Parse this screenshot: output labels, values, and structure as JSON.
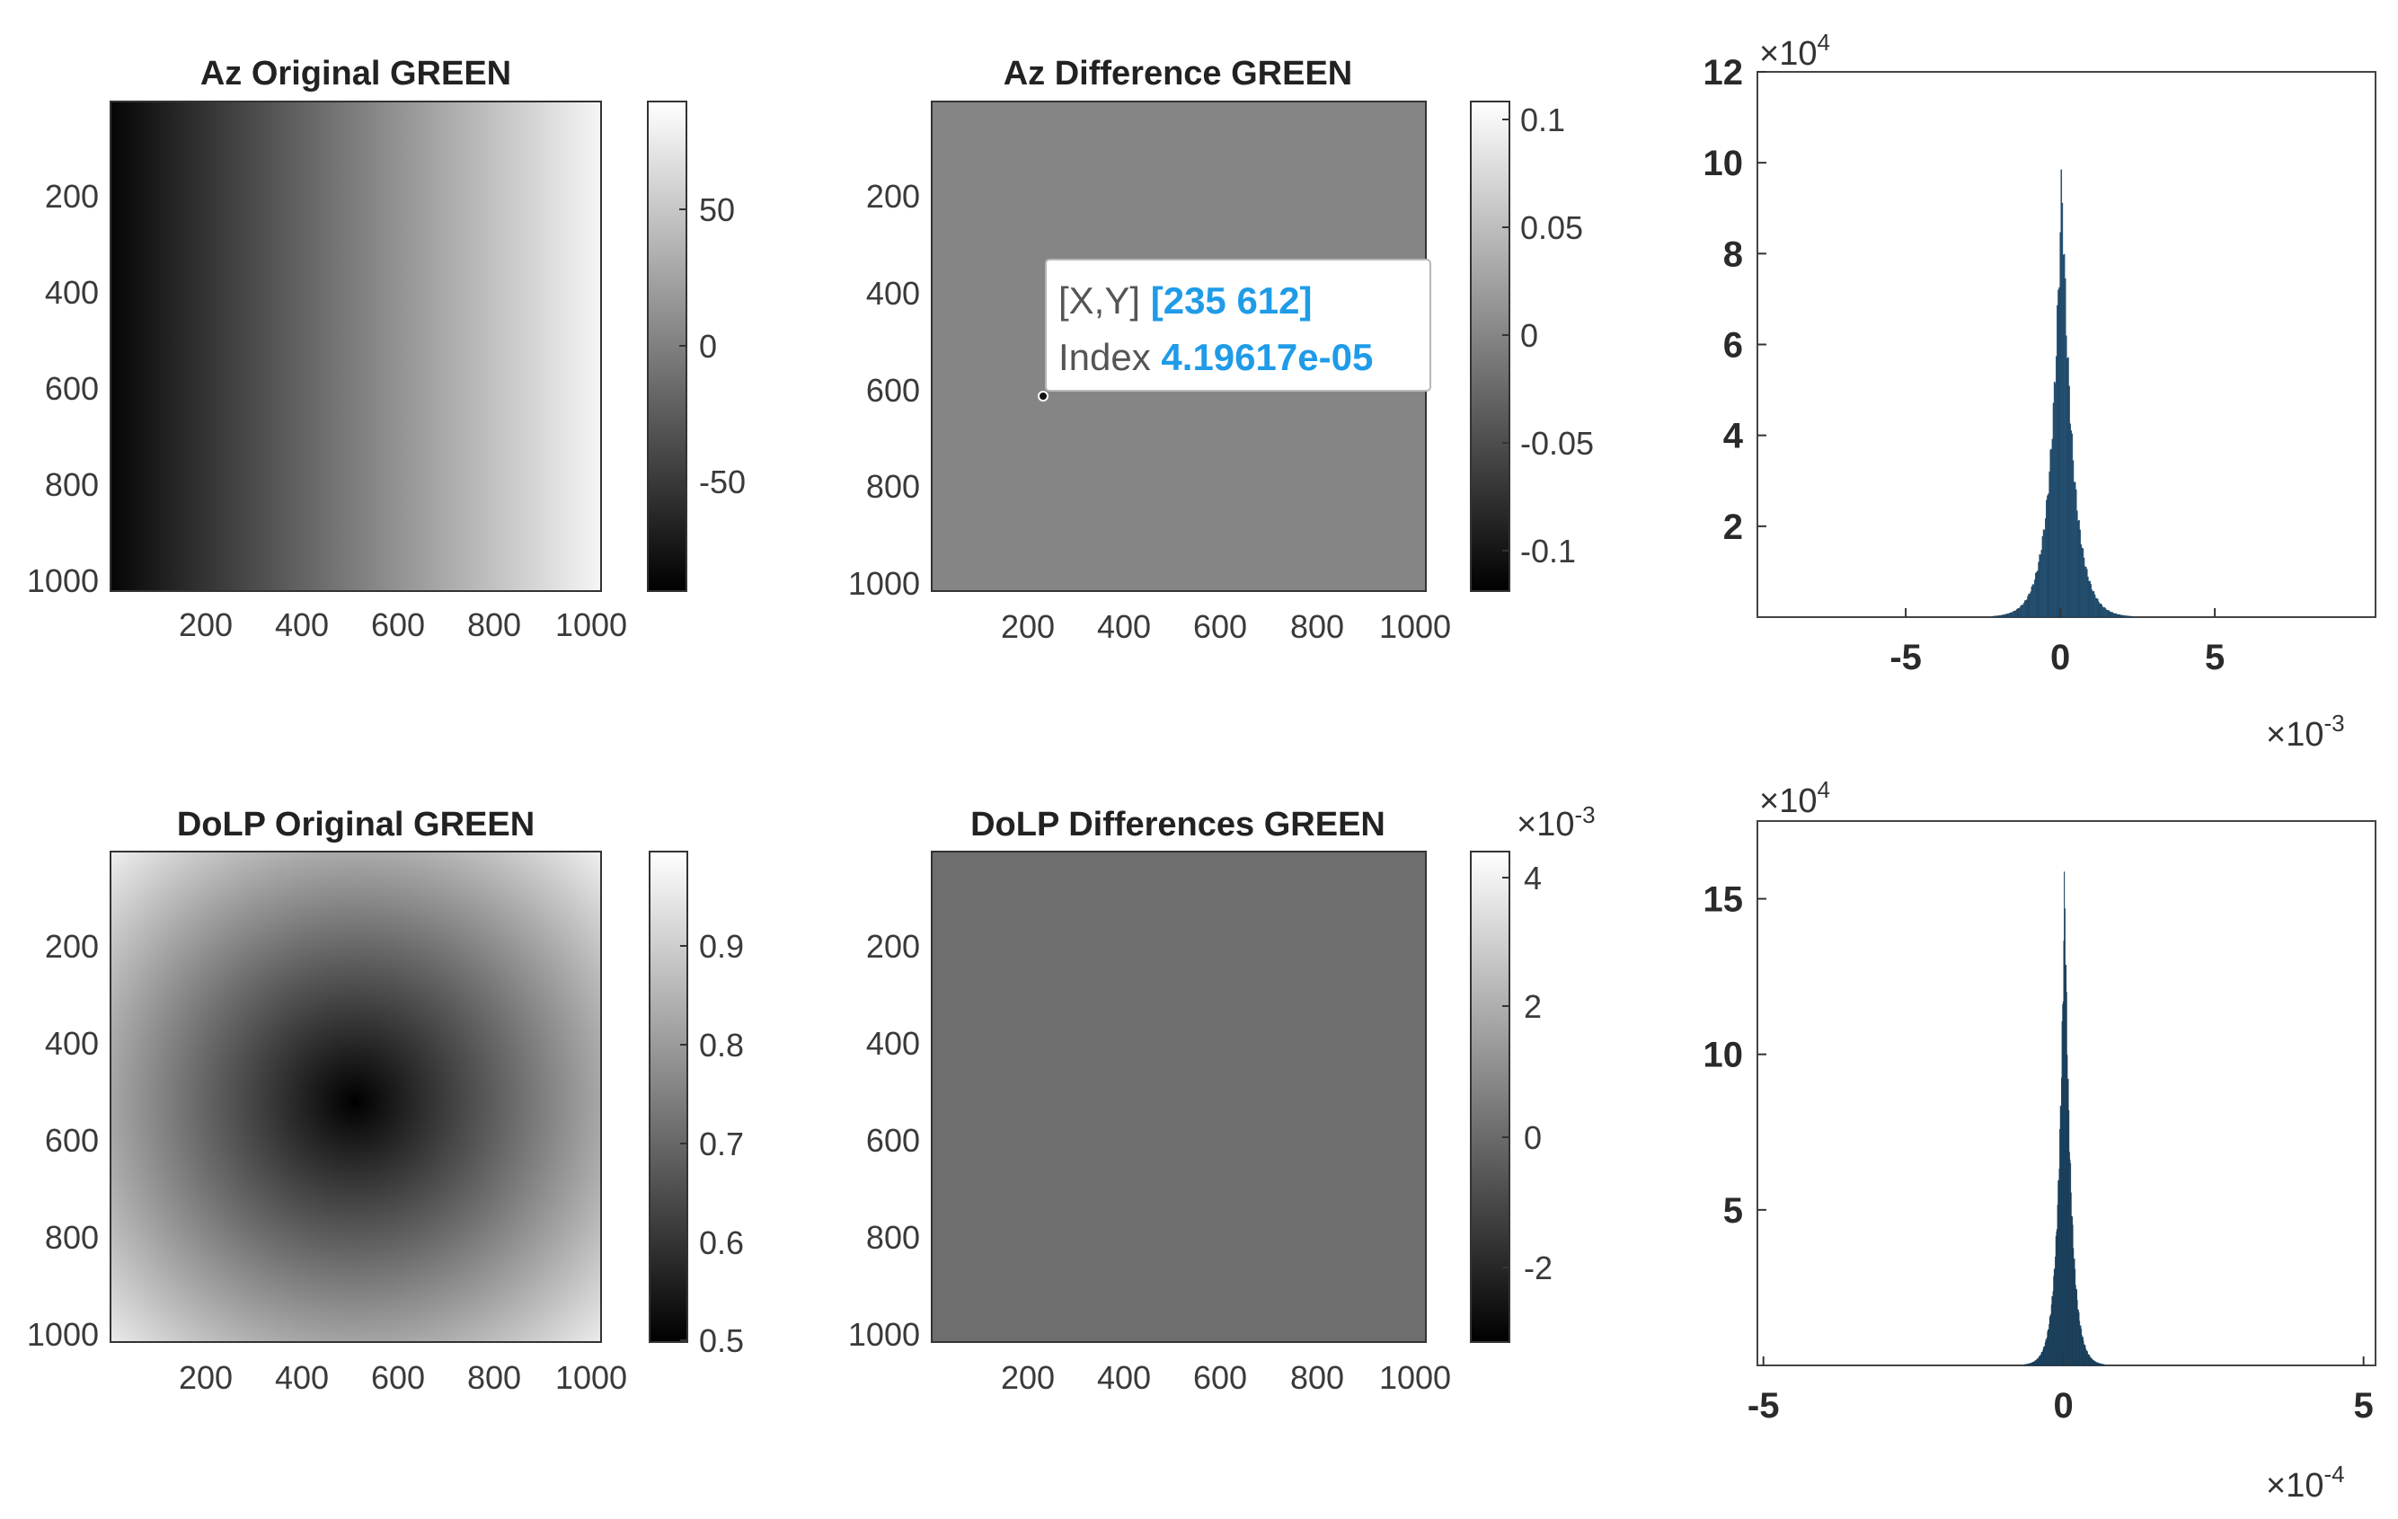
{
  "colors": {
    "histogram_bar": "#2e5f86",
    "histogram_edge": "#13324a",
    "datatip_value": "#1f9be8",
    "axes": "#333333"
  },
  "chart_data": [
    {
      "type": "heatmap",
      "title": "Az Original  GREEN",
      "colormap": "gray",
      "pattern": "horizontal-ramp",
      "x_ticks": [
        "200",
        "400",
        "600",
        "800",
        "1000"
      ],
      "y_ticks": [
        "200",
        "400",
        "600",
        "800",
        "1000"
      ],
      "xlim": [
        1,
        1024
      ],
      "ylim": [
        1,
        1024
      ],
      "clim": [
        -90,
        90
      ],
      "colorbar": {
        "ticks": [
          50,
          0,
          -50
        ],
        "labels": [
          "50",
          "0",
          "-50"
        ],
        "multiplier": ""
      }
    },
    {
      "type": "heatmap",
      "title": "Az Difference GREEN",
      "colormap": "gray",
      "pattern": "uniform",
      "uniform_value": 0,
      "x_ticks": [
        "200",
        "400",
        "600",
        "800",
        "1000"
      ],
      "y_ticks": [
        "200",
        "400",
        "600",
        "800",
        "1000"
      ],
      "xlim": [
        1,
        1024
      ],
      "ylim": [
        1,
        1024
      ],
      "clim": [
        -0.12,
        0.12
      ],
      "colorbar": {
        "ticks": [
          0.1,
          0.05,
          0,
          -0.05,
          -0.1
        ],
        "labels": [
          "0.1",
          "0.05",
          "0",
          "-0.05",
          "-0.1"
        ],
        "multiplier": ""
      },
      "datatip": {
        "x": 235,
        "y": 612,
        "xy_label": "[X,Y]",
        "xy_value": "[235 612]",
        "index_label": "Index",
        "index_value": "4.19617e-05"
      }
    },
    {
      "type": "bar",
      "subtype": "histogram",
      "x_ticks": [
        -5,
        0,
        5
      ],
      "x_tick_labels": [
        "-5",
        "0",
        "5"
      ],
      "y_ticks": [
        2,
        4,
        6,
        8,
        10,
        12
      ],
      "y_tick_labels": [
        "2",
        "4",
        "6",
        "8",
        "10",
        "12"
      ],
      "xlim": [
        -9.8,
        10.2
      ],
      "ylim": [
        0,
        12
      ],
      "x_multiplier": "×10",
      "x_multiplier_exp": "-3",
      "y_multiplier": "×10",
      "y_multiplier_exp": "4",
      "peak": 10.3,
      "center": 0.05,
      "spread": 0.85
    },
    {
      "type": "heatmap",
      "title": "DoLP Original GREEN",
      "colormap": "gray",
      "pattern": "radial",
      "center": [
        512,
        512
      ],
      "x_ticks": [
        "200",
        "400",
        "600",
        "800",
        "1000"
      ],
      "y_ticks": [
        "200",
        "400",
        "600",
        "800",
        "1000"
      ],
      "xlim": [
        1,
        1024
      ],
      "ylim": [
        1,
        1024
      ],
      "clim": [
        0.5,
        0.98
      ],
      "colorbar": {
        "ticks": [
          0.9,
          0.8,
          0.7,
          0.6,
          0.5
        ],
        "labels": [
          "0.9",
          "0.8",
          "0.7",
          "0.6",
          "0.5"
        ],
        "multiplier": ""
      }
    },
    {
      "type": "heatmap",
      "title": "DoLP Differences GREEN",
      "colormap": "gray",
      "pattern": "uniform",
      "uniform_value": 0,
      "x_ticks": [
        "200",
        "400",
        "600",
        "800",
        "1000"
      ],
      "y_ticks": [
        "200",
        "400",
        "600",
        "800",
        "1000"
      ],
      "xlim": [
        1,
        1024
      ],
      "ylim": [
        1,
        1024
      ],
      "clim": [
        -3.2,
        4.5
      ],
      "colorbar": {
        "ticks": [
          4,
          2,
          0,
          -2
        ],
        "labels": [
          "4",
          "2",
          "0",
          "-2"
        ],
        "multiplier": "×10",
        "multiplier_exp": "-3"
      }
    },
    {
      "type": "bar",
      "subtype": "histogram",
      "x_ticks": [
        -5,
        0,
        5
      ],
      "x_tick_labels": [
        "-5",
        "0",
        "5"
      ],
      "y_ticks": [
        5,
        10,
        15
      ],
      "y_tick_labels": [
        "5",
        "10",
        "15"
      ],
      "xlim": [
        -5.1,
        5.2
      ],
      "ylim": [
        0,
        17.5
      ],
      "x_multiplier": "×10",
      "x_multiplier_exp": "-4",
      "y_multiplier": "×10",
      "y_multiplier_exp": "4",
      "peak": 16.6,
      "center": 0.02,
      "spread": 0.25
    }
  ]
}
